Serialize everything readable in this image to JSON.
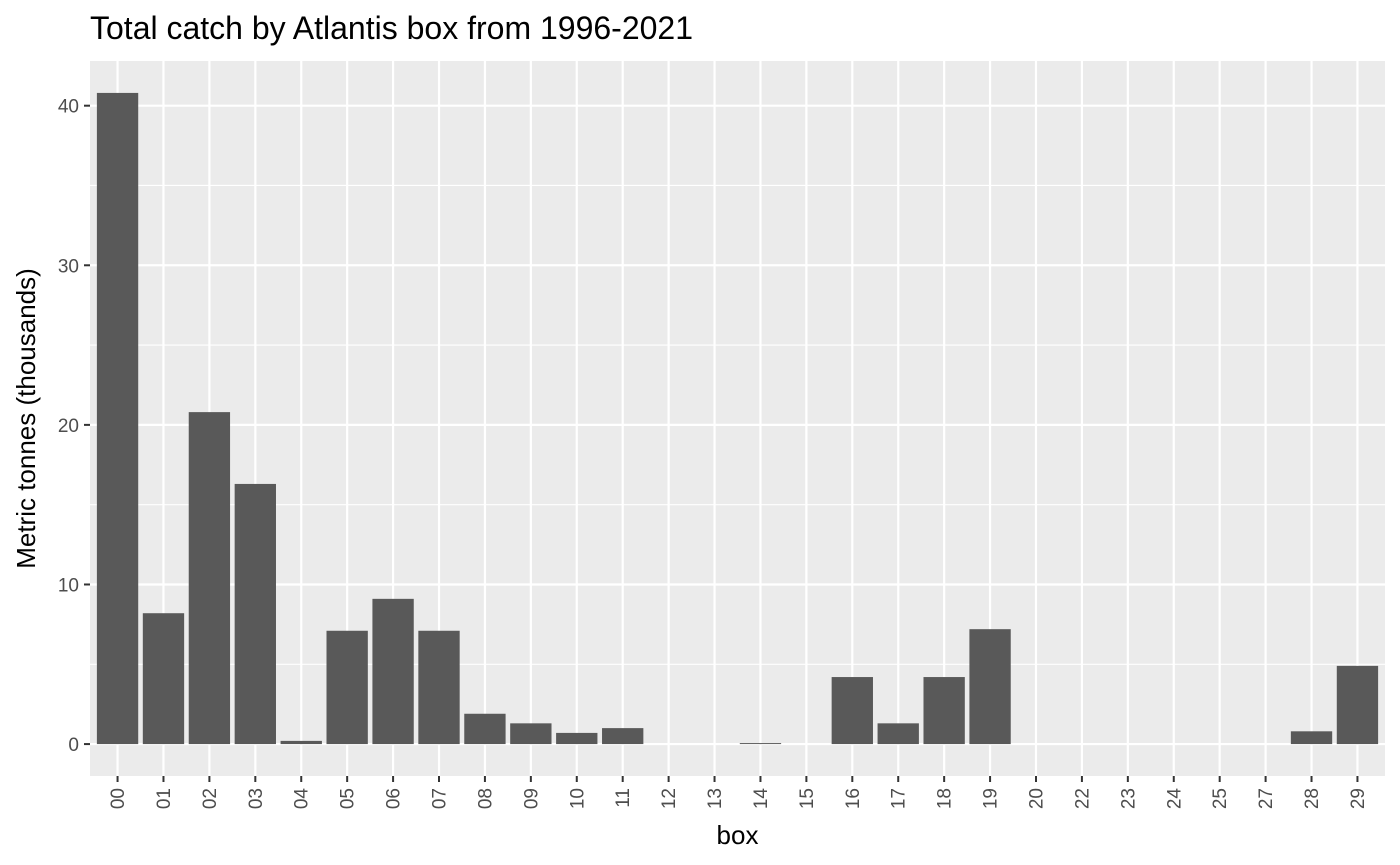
{
  "chart_data": {
    "type": "bar",
    "title": "Total catch by Atlantis box from 1996-2021",
    "xlabel": "box",
    "ylabel": "Metric tonnes (thousands)",
    "categories": [
      "00",
      "01",
      "02",
      "03",
      "04",
      "05",
      "06",
      "07",
      "08",
      "09",
      "10",
      "11",
      "12",
      "13",
      "14",
      "15",
      "16",
      "17",
      "18",
      "19",
      "20",
      "22",
      "23",
      "24",
      "25",
      "27",
      "28",
      "29"
    ],
    "values": [
      40.8,
      8.2,
      20.8,
      16.3,
      0.2,
      7.1,
      9.1,
      7.1,
      1.9,
      1.3,
      0.7,
      1.0,
      0,
      0,
      0.05,
      0,
      4.2,
      1.3,
      4.2,
      7.2,
      0,
      0,
      0,
      0,
      0,
      0,
      0.8,
      4.9
    ],
    "ylim": [
      -2.0,
      42.8
    ],
    "yticks": [
      0,
      10,
      20,
      30,
      40
    ],
    "ytick_labels": [
      "0",
      "10",
      "20",
      "30",
      "40"
    ],
    "grid": true,
    "legend": "none",
    "colors": {
      "bar": "#595959",
      "panel": "#ebebeb",
      "grid": "#ffffff",
      "tick": "#333333"
    }
  }
}
